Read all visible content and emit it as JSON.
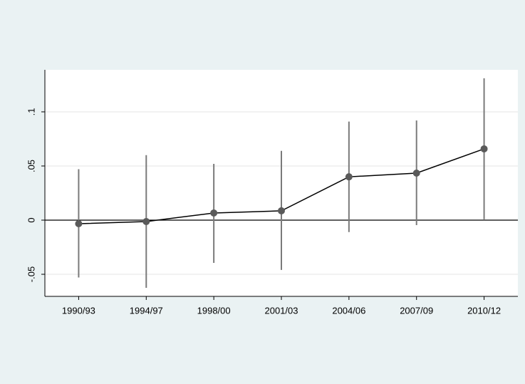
{
  "chart_data": {
    "type": "errorbar-line",
    "categories": [
      "1990/93",
      "1994/97",
      "1998/00",
      "2001/03",
      "2004/06",
      "2007/09",
      "2010/12"
    ],
    "values": [
      -0.0033,
      -0.0013,
      0.0066,
      0.0086,
      0.04,
      0.0434,
      0.0658
    ],
    "lower": [
      -0.053,
      -0.0625,
      -0.0395,
      -0.046,
      -0.011,
      -0.0046,
      0.0007
    ],
    "upper": [
      0.047,
      0.06,
      0.052,
      0.064,
      0.091,
      0.092,
      0.131
    ],
    "color": "#5a5a5a",
    "line_color": "#000000",
    "ci_color": "#7a7a7a",
    "ylim": [
      -0.0704,
      0.1388
    ],
    "yticks": [
      {
        "value": -0.05,
        "label": "-.05"
      },
      0,
      {
        "value": 0.05,
        "label": ".05"
      },
      {
        "value": 0.1,
        "label": ".1"
      }
    ],
    "grid": true,
    "reference_line": 0
  }
}
